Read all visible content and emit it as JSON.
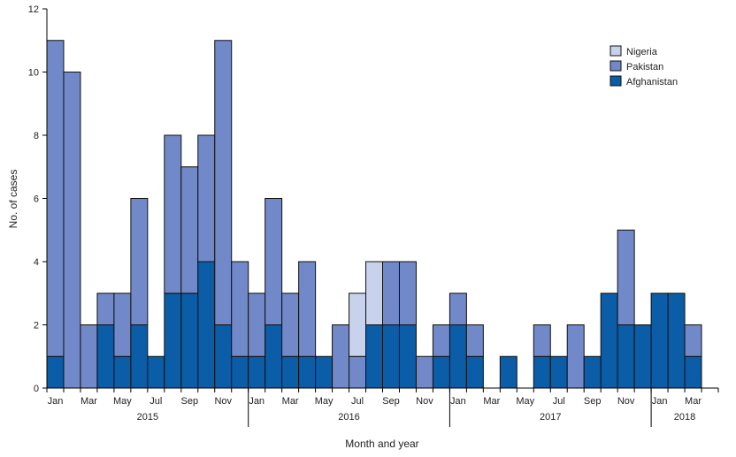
{
  "colors": {
    "Nigeria": "#c9d2ec",
    "Pakistan": "#7189c8",
    "Afghanistan": "#0a5da6",
    "stroke": "#111111"
  },
  "chart_data": {
    "type": "bar",
    "stacked": true,
    "title": "",
    "xlabel": "Month and year",
    "ylabel": "No. of cases",
    "ylim": [
      0,
      12
    ],
    "yticks": [
      0,
      2,
      4,
      6,
      8,
      10,
      12
    ],
    "grid": false,
    "legend_position": "top-right",
    "categories": [
      "Jan 2015",
      "Feb 2015",
      "Mar 2015",
      "Apr 2015",
      "May 2015",
      "Jun 2015",
      "Jul 2015",
      "Aug 2015",
      "Sep 2015",
      "Oct 2015",
      "Nov 2015",
      "Dec 2015",
      "Jan 2016",
      "Feb 2016",
      "Mar 2016",
      "Apr 2016",
      "May 2016",
      "Jun 2016",
      "Jul 2016",
      "Aug 2016",
      "Sep 2016",
      "Oct 2016",
      "Nov 2016",
      "Dec 2016",
      "Jan 2017",
      "Feb 2017",
      "Mar 2017",
      "Apr 2017",
      "May 2017",
      "Jun 2017",
      "Jul 2017",
      "Aug 2017",
      "Sep 2017",
      "Oct 2017",
      "Nov 2017",
      "Dec 2017",
      "Jan 2018",
      "Feb 2018",
      "Mar 2018",
      "Apr 2018"
    ],
    "x_tick_labels": [
      {
        "index": 0,
        "label": "Jan"
      },
      {
        "index": 2,
        "label": "Mar"
      },
      {
        "index": 4,
        "label": "May"
      },
      {
        "index": 6,
        "label": "Jul"
      },
      {
        "index": 8,
        "label": "Sep"
      },
      {
        "index": 10,
        "label": "Nov"
      },
      {
        "index": 12,
        "label": "Jan"
      },
      {
        "index": 14,
        "label": "Mar"
      },
      {
        "index": 16,
        "label": "May"
      },
      {
        "index": 18,
        "label": "Jul"
      },
      {
        "index": 20,
        "label": "Sep"
      },
      {
        "index": 22,
        "label": "Nov"
      },
      {
        "index": 24,
        "label": "Jan"
      },
      {
        "index": 26,
        "label": "Mar"
      },
      {
        "index": 28,
        "label": "May"
      },
      {
        "index": 30,
        "label": "Jul"
      },
      {
        "index": 32,
        "label": "Sep"
      },
      {
        "index": 34,
        "label": "Nov"
      },
      {
        "index": 36,
        "label": "Jan"
      },
      {
        "index": 38,
        "label": "Mar"
      }
    ],
    "years": [
      {
        "label": "2015",
        "start_index": 0,
        "end_index": 11
      },
      {
        "label": "2016",
        "start_index": 12,
        "end_index": 23
      },
      {
        "label": "2017",
        "start_index": 24,
        "end_index": 35
      },
      {
        "label": "2018",
        "start_index": 36,
        "end_index": 39
      }
    ],
    "series": [
      {
        "name": "Afghanistan",
        "values": [
          1,
          0,
          0,
          2,
          1,
          2,
          1,
          3,
          3,
          4,
          2,
          1,
          1,
          2,
          1,
          1,
          1,
          0,
          0,
          2,
          2,
          2,
          0,
          1,
          2,
          1,
          0,
          1,
          0,
          1,
          1,
          0,
          1,
          3,
          2,
          2,
          3,
          3,
          1,
          0
        ]
      },
      {
        "name": "Pakistan",
        "values": [
          10,
          10,
          2,
          1,
          2,
          4,
          0,
          5,
          4,
          4,
          9,
          3,
          2,
          4,
          2,
          3,
          0,
          2,
          1,
          0,
          2,
          2,
          1,
          1,
          1,
          1,
          0,
          0,
          0,
          1,
          0,
          2,
          0,
          0,
          3,
          0,
          0,
          0,
          1,
          0
        ]
      },
      {
        "name": "Nigeria",
        "values": [
          0,
          0,
          0,
          0,
          0,
          0,
          0,
          0,
          0,
          0,
          0,
          0,
          0,
          0,
          0,
          0,
          0,
          0,
          2,
          2,
          0,
          0,
          0,
          0,
          0,
          0,
          0,
          0,
          0,
          0,
          0,
          0,
          0,
          0,
          0,
          0,
          0,
          0,
          0,
          0
        ]
      }
    ],
    "legend_order": [
      "Nigeria",
      "Pakistan",
      "Afghanistan"
    ]
  }
}
